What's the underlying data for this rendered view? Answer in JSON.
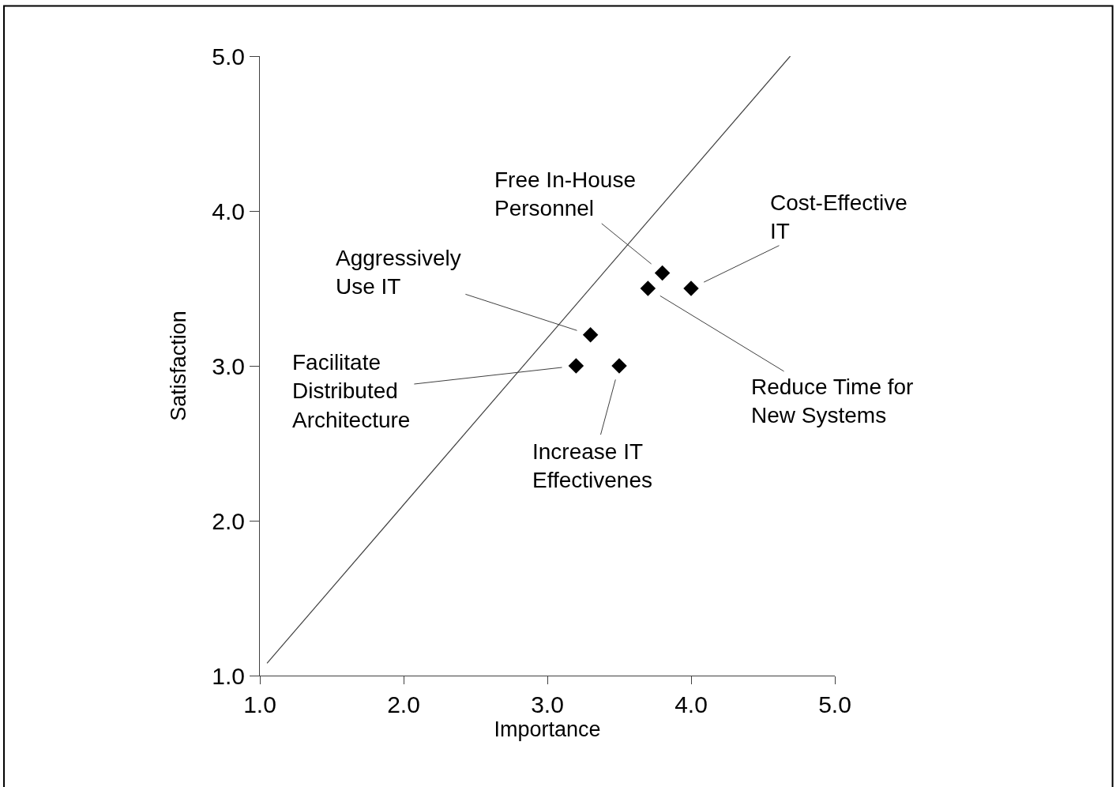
{
  "chart_data": {
    "type": "scatter",
    "xlabel": "Importance",
    "ylabel": "Satisfaction",
    "xlim": [
      1,
      5
    ],
    "ylim": [
      1,
      5
    ],
    "xticks": [
      {
        "value": 1,
        "label": "1.0"
      },
      {
        "value": 2,
        "label": "2.0"
      },
      {
        "value": 3,
        "label": "3.0"
      },
      {
        "value": 4,
        "label": "4.0"
      },
      {
        "value": 5,
        "label": "5.0"
      }
    ],
    "yticks": [
      {
        "value": 1,
        "label": "1.0"
      },
      {
        "value": 2,
        "label": "2.0"
      },
      {
        "value": 3,
        "label": "3.0"
      },
      {
        "value": 4,
        "label": "4.0"
      },
      {
        "value": 5,
        "label": "5.0"
      }
    ],
    "grid": false,
    "series": [
      {
        "marker": "diamond",
        "color": "#000000",
        "x": [
          3.2,
          3.3,
          3.5,
          3.7,
          3.8,
          4.0
        ],
        "values": [
          3.0,
          3.2,
          3.0,
          3.5,
          3.6,
          3.5
        ]
      },
      {
        "type": "line",
        "color": "#404040",
        "line_style": "solid",
        "x": [
          1.05,
          4.69
        ],
        "values": [
          1.08,
          5.0
        ]
      }
    ],
    "annotations": [
      {
        "text": "Facilitate\nDistributed\nArchitecture",
        "x": 3.2,
        "y": 3.0
      },
      {
        "text": "Aggressively\nUse IT",
        "x": 3.3,
        "y": 3.2
      },
      {
        "text": "Increase IT\nEffectivenes",
        "x": 3.5,
        "y": 3.0
      },
      {
        "text": "Reduce Time for\nNew Systems",
        "x": 3.7,
        "y": 3.5
      },
      {
        "text": "Free In-House\nPersonnel",
        "x": 3.8,
        "y": 3.6
      },
      {
        "text": "Cost-Effective\nIT",
        "x": 4.0,
        "y": 3.5
      }
    ]
  }
}
